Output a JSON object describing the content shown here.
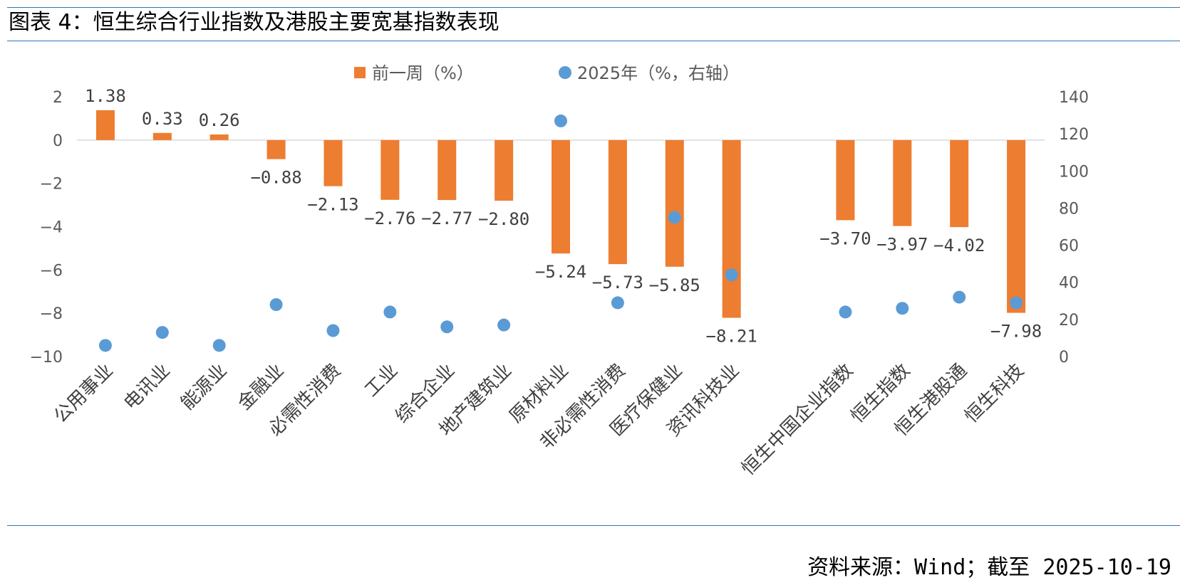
{
  "header": {
    "title": "图表 4：恒生综合行业指数及港股主要宽基指数表现"
  },
  "footer": {
    "source": "资料来源：Wind；截至 2025-10-19"
  },
  "colors": {
    "bar": "#ed7d31",
    "dot": "#5b9bd5",
    "rule": "#2e75b6",
    "axis": "#d9d9d9"
  },
  "chart_data": {
    "type": "bar",
    "categories": [
      "公用事业",
      "电讯业",
      "能源业",
      "金融业",
      "必需性消费",
      "工业",
      "综合企业",
      "地产建筑业",
      "原材料业",
      "非必需性消费",
      "医疗保健业",
      "资讯科技业",
      "恒生中国企业指数",
      "恒生指数",
      "恒生港股通",
      "恒生科技"
    ],
    "category_gap_after_index": 11,
    "series": [
      {
        "name": "前一周（%）",
        "type": "bar",
        "axis": "left",
        "values": [
          1.38,
          0.33,
          0.26,
          -0.88,
          -2.13,
          -2.76,
          -2.77,
          -2.8,
          -5.24,
          -5.73,
          -5.85,
          -8.21,
          -3.7,
          -3.97,
          -4.02,
          -7.98
        ],
        "labels": [
          "1.38",
          "0.33",
          "0.26",
          "−0.88",
          "−2.13",
          "−2.76",
          "−2.77",
          "−2.80",
          "−5.24",
          "−5.73",
          "−5.85",
          "−8.21",
          "−3.70",
          "−3.97",
          "−4.02",
          "−7.98"
        ]
      },
      {
        "name": "2025年（%，右轴）",
        "type": "scatter",
        "axis": "right",
        "values": [
          6,
          13,
          6,
          28,
          14,
          24,
          16,
          17,
          127,
          29,
          75,
          44,
          24,
          26,
          32,
          29
        ]
      }
    ],
    "y_left": {
      "range": [
        -10,
        2
      ],
      "ticks": [
        "2",
        "0",
        "−2",
        "−4",
        "−6",
        "−8",
        "−10"
      ],
      "tick_values": [
        2,
        0,
        -2,
        -4,
        -6,
        -8,
        -10
      ]
    },
    "y_right": {
      "range": [
        0,
        140
      ],
      "ticks": [
        "140",
        "120",
        "100",
        "80",
        "60",
        "40",
        "20",
        "0"
      ],
      "tick_values": [
        140,
        120,
        100,
        80,
        60,
        40,
        20,
        0
      ]
    },
    "legend_position": "top",
    "grid": false
  }
}
